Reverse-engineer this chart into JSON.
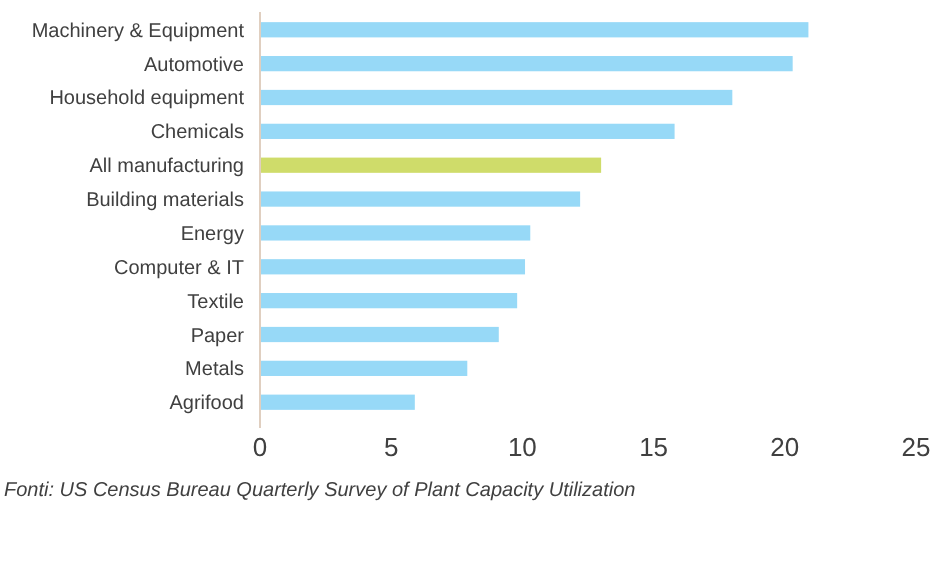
{
  "chart_data": {
    "type": "bar",
    "orientation": "horizontal",
    "categories": [
      "Machinery & Equipment",
      "Automotive",
      "Household equipment",
      "Chemicals",
      "All manufacturing",
      "Building materials",
      "Energy",
      "Computer & IT",
      "Textile",
      "Paper",
      "Metals",
      "Agrifood"
    ],
    "values": [
      20.9,
      20.3,
      18.0,
      15.8,
      13.0,
      12.2,
      10.3,
      10.1,
      9.8,
      9.1,
      7.9,
      5.9
    ],
    "colors": [
      "#97d9f7",
      "#97d9f7",
      "#97d9f7",
      "#97d9f7",
      "#cfdc6a",
      "#97d9f7",
      "#97d9f7",
      "#97d9f7",
      "#97d9f7",
      "#97d9f7",
      "#97d9f7",
      "#97d9f7"
    ],
    "xlim": [
      0,
      25
    ],
    "xticks": [
      0,
      5,
      10,
      15,
      20,
      25
    ],
    "annotations": [
      "Fonti: US Census Bureau Quarterly Survey of Plant Capacity Utilization"
    ]
  }
}
